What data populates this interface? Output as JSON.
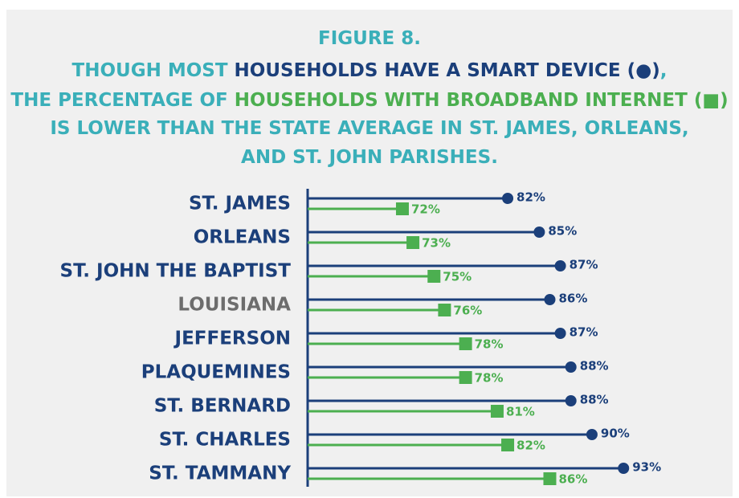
{
  "chart_data": {
    "type": "lollipop",
    "title_lines": [
      [
        {
          "text": "FIGURE 8.",
          "color": "#3aafb9"
        }
      ],
      [
        {
          "text": "THOUGH MOST ",
          "color": "#3aafb9"
        },
        {
          "text": "HOUSEHOLDS HAVE A SMART DEVICE (●)",
          "color": "#1b3f7a"
        },
        {
          "text": ",",
          "color": "#3aafb9"
        }
      ],
      [
        {
          "text": "THE PERCENTAGE OF ",
          "color": "#3aafb9"
        },
        {
          "text": "HOUSEHOLDS WITH BROADBAND INTERNET (■)",
          "color": "#4caf50"
        }
      ],
      [
        {
          "text": "IS LOWER THAN THE STATE AVERAGE IN ST. JAMES, ORLEANS,",
          "color": "#3aafb9"
        }
      ],
      [
        {
          "text": "AND ST. JOHN PARISHES.",
          "color": "#3aafb9"
        }
      ]
    ],
    "categories": [
      "ST. JAMES",
      "ORLEANS",
      "ST. JOHN THE BAPTIST",
      "LOUISIANA",
      "JEFFERSON",
      "PLAQUEMINES",
      "ST. BERNARD",
      "ST. CHARLES",
      "ST. TAMMANY"
    ],
    "category_colors": [
      "#1b3f7a",
      "#1b3f7a",
      "#1b3f7a",
      "#6d6d6d",
      "#1b3f7a",
      "#1b3f7a",
      "#1b3f7a",
      "#1b3f7a",
      "#1b3f7a"
    ],
    "series": [
      {
        "name": "HOUSEHOLDS HAVE A SMART DEVICE",
        "color": "#1b3f7a",
        "marker": "circle",
        "values": [
          82,
          85,
          87,
          86,
          87,
          88,
          88,
          90,
          93
        ],
        "value_labels": [
          "82%",
          "85%",
          "87%",
          "86%",
          "87%",
          "88%",
          "88%",
          "90%",
          "93%"
        ]
      },
      {
        "name": "HOUSEHOLDS WITH BROADBAND INTERNET",
        "color": "#4caf50",
        "marker": "square",
        "values": [
          72,
          73,
          75,
          76,
          78,
          78,
          81,
          82,
          86
        ],
        "value_labels": [
          "72%",
          "73%",
          "75%",
          "76%",
          "78%",
          "78%",
          "81%",
          "82%",
          "86%"
        ]
      }
    ],
    "xlim": [
      63,
      100
    ]
  }
}
